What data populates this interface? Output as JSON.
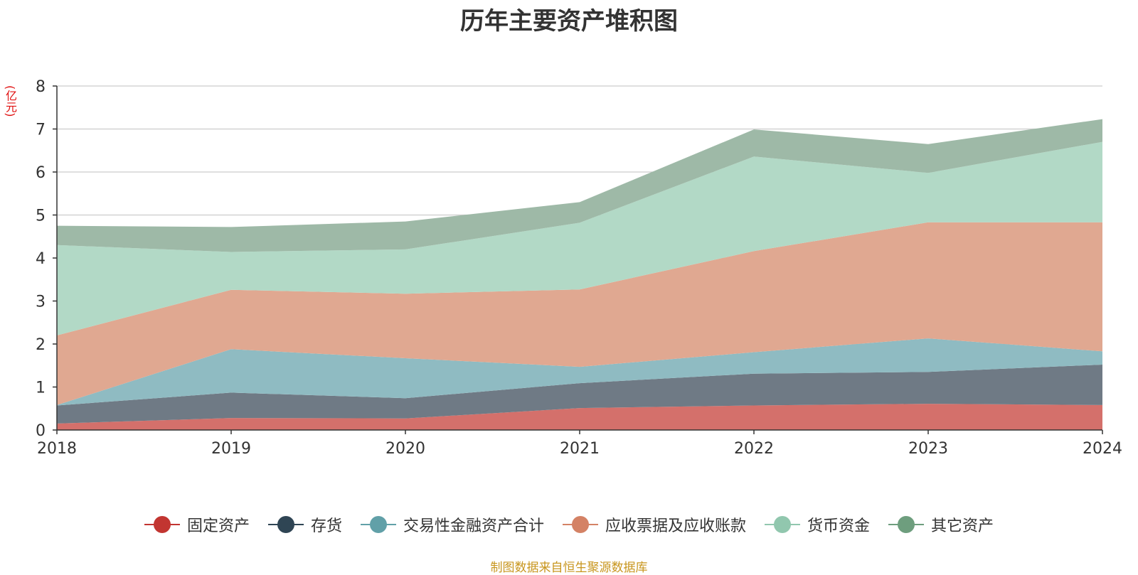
{
  "title": "历年主要资产堆积图",
  "unit": "(亿元)",
  "source": "制图数据来自恒生聚源数据库",
  "colors": {
    "grid": "#cccccc",
    "axis": "#333333",
    "tick_text": "#333333",
    "legend_fixed": "#c23531",
    "legend_inventory": "#2f4554",
    "legend_trading": "#61a0a8",
    "legend_receivable": "#d48265",
    "legend_cash": "#91c7ae",
    "legend_other": "#6e9e7e"
  },
  "chart_data": {
    "type": "area",
    "stacked": true,
    "title": "历年主要资产堆积图",
    "ylabel": "(亿元)",
    "xlabel": "",
    "x": [
      "2018",
      "2019",
      "2020",
      "2021",
      "2022",
      "2023",
      "2024"
    ],
    "ylim": [
      0,
      8
    ],
    "yticks": [
      "0",
      "1",
      "2",
      "3",
      "4",
      "5",
      "6",
      "7",
      "8"
    ],
    "grid": true,
    "legend_position": "bottom",
    "series": [
      {
        "name": "固定资产",
        "fill": "#d4706b",
        "line": "#c23531",
        "values": [
          0.15,
          0.28,
          0.27,
          0.51,
          0.57,
          0.61,
          0.58
        ]
      },
      {
        "name": "存货",
        "fill": "#6f7a85",
        "line": "#2f4554",
        "values": [
          0.42,
          0.59,
          0.47,
          0.58,
          0.74,
          0.74,
          0.94
        ]
      },
      {
        "name": "交易性金融资产合计",
        "fill": "#8fbbc2",
        "line": "#61a0a8",
        "values": [
          0.01,
          1.01,
          0.93,
          0.38,
          0.5,
          0.78,
          0.31
        ]
      },
      {
        "name": "应收票据及应收账款",
        "fill": "#e0a891",
        "line": "#d48265",
        "values": [
          1.62,
          1.38,
          1.5,
          1.8,
          2.35,
          2.7,
          3.0
        ]
      },
      {
        "name": "货币资金",
        "fill": "#b2d9c6",
        "line": "#91c7ae",
        "values": [
          2.1,
          0.88,
          1.03,
          1.55,
          2.2,
          1.15,
          1.87
        ]
      },
      {
        "name": "其它资产",
        "fill": "#9eb9a7",
        "line": "#6e9e7e",
        "values": [
          0.45,
          0.58,
          0.65,
          0.48,
          0.63,
          0.67,
          0.53
        ]
      }
    ]
  }
}
